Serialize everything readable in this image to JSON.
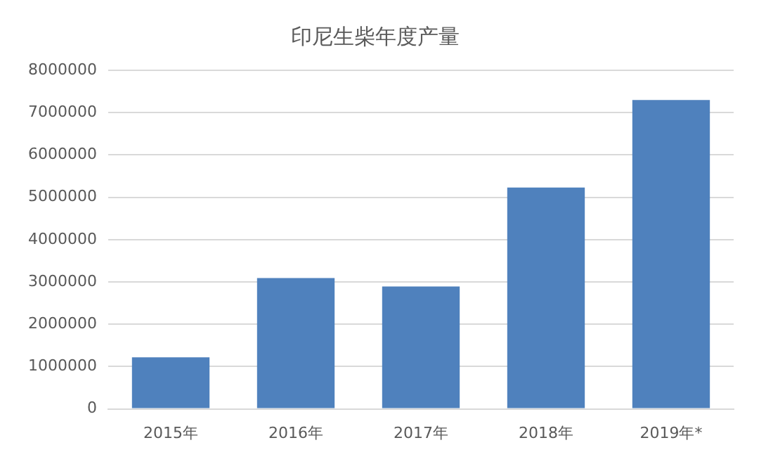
{
  "chart_data": {
    "type": "bar",
    "title": "印尼生柴年度产量",
    "categories": [
      "2015年",
      "2016年",
      "2017年",
      "2018年",
      "2019年*"
    ],
    "values": [
      1220000,
      3090000,
      2890000,
      5230000,
      7300000
    ],
    "color": "#4f81bd",
    "ylim": [
      0,
      8000000
    ],
    "yticks": [
      0,
      1000000,
      2000000,
      3000000,
      4000000,
      5000000,
      6000000,
      7000000,
      8000000
    ],
    "grid": "y",
    "legend": false
  }
}
